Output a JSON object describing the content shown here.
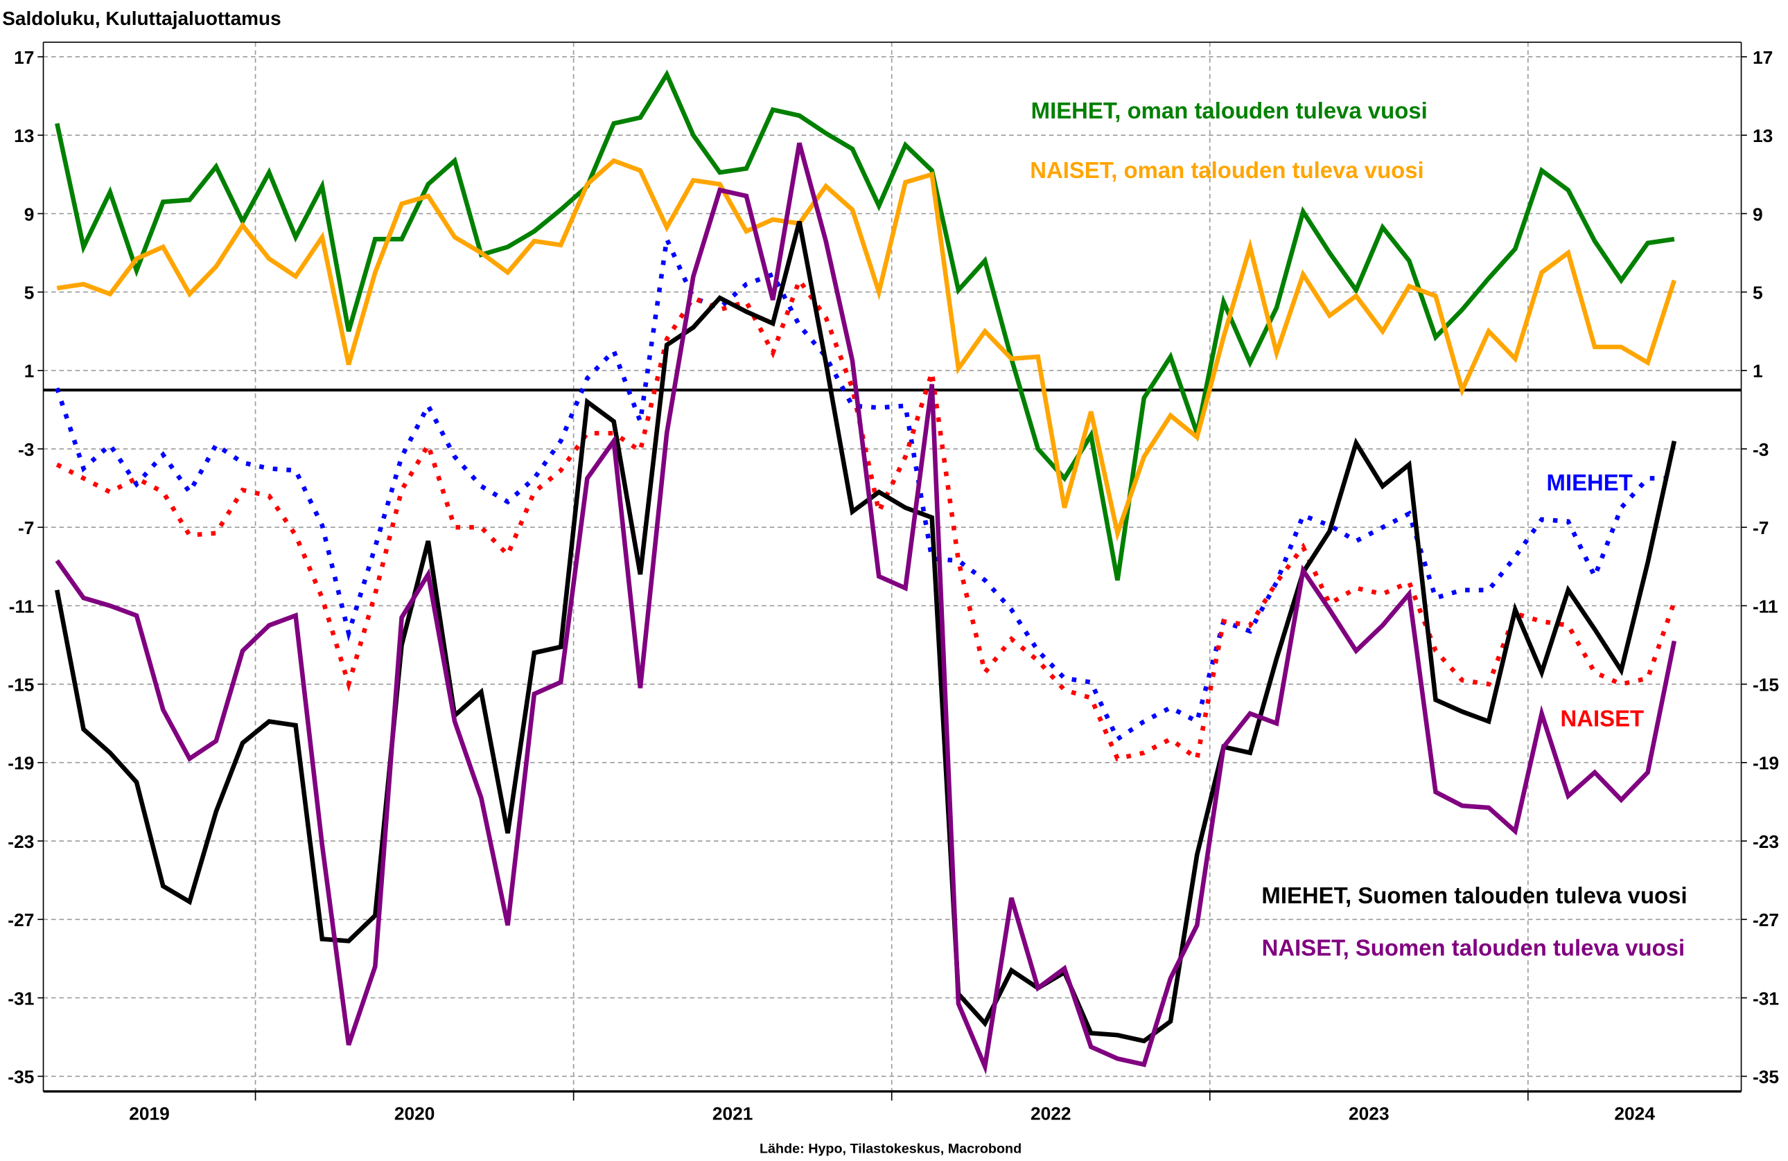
{
  "chart_data": {
    "type": "line",
    "title": "Saldoluku, Kuluttajaluottamus",
    "source": "Lähde: Hypo, Tilastokeskus, Macrobond",
    "xlabel": "",
    "ylabel": "Saldoluku",
    "ylim": [
      -36.5,
      17.8
    ],
    "yticks": [
      17,
      13,
      9,
      5,
      1,
      -3,
      -7,
      -11,
      -15,
      -19,
      -23,
      -27,
      -31,
      -35
    ],
    "x_start": "2019-05",
    "x_frequency": "monthly",
    "x_end": "2024-06",
    "xtick_labels": [
      "2019",
      "2020",
      "2021",
      "2022",
      "2023",
      "2024"
    ],
    "grid": true,
    "zero_line": true,
    "series": [
      {
        "name": "MIEHET, oman talouden tuleva vuosi",
        "label": "MIEHET, oman talouden tuleva vuosi",
        "color": "#008000",
        "style": "solid",
        "values": [
          13.6,
          7.3,
          10.1,
          6.1,
          9.6,
          9.7,
          11.4,
          8.6,
          11.1,
          7.8,
          10.4,
          3.0,
          7.7,
          7.7,
          10.5,
          11.7,
          6.9,
          7.3,
          8.1,
          9.2,
          10.4,
          13.6,
          13.9,
          16.1,
          13.0,
          11.1,
          11.3,
          14.3,
          14.0,
          13.1,
          12.3,
          9.4,
          12.5,
          11.2,
          5.1,
          6.6,
          1.6,
          -3.0,
          -4.5,
          -2.3,
          -9.7,
          -0.4,
          1.7,
          -2.2,
          4.5,
          1.4,
          4.2,
          9.1,
          7.0,
          5.1,
          8.3,
          6.6,
          2.7,
          4.1,
          5.7,
          7.2,
          11.2,
          10.2,
          7.6,
          5.6,
          7.5,
          7.7
        ]
      },
      {
        "name": "NAISET, oman talouden tuleva vuosi",
        "label": "NAISET, oman talouden tuleva vuosi",
        "color": "#FFA500",
        "style": "solid",
        "values": [
          5.2,
          5.4,
          4.9,
          6.7,
          7.3,
          4.9,
          6.3,
          8.4,
          6.7,
          5.8,
          7.8,
          1.3,
          6.0,
          9.5,
          9.9,
          7.8,
          7.0,
          6.0,
          7.6,
          7.4,
          10.5,
          11.7,
          11.2,
          8.3,
          10.7,
          10.5,
          8.1,
          8.7,
          8.5,
          10.4,
          9.2,
          5.0,
          10.6,
          11.0,
          1.1,
          3.0,
          1.6,
          1.7,
          -6.0,
          -1.1,
          -7.3,
          -3.4,
          -1.3,
          -2.4,
          2.7,
          7.3,
          1.9,
          5.9,
          3.8,
          4.8,
          3.0,
          5.3,
          4.8,
          0.0,
          3.0,
          1.6,
          6.0,
          7.0,
          2.2,
          2.2,
          1.4,
          5.6
        ]
      },
      {
        "name": "MIEHET",
        "label": "MIEHET",
        "color": "#0000FF",
        "style": "dotted",
        "values": [
          0.1,
          -4.0,
          -2.8,
          -4.8,
          -3.3,
          -5.2,
          -2.8,
          -3.7,
          -4.0,
          -4.1,
          -6.9,
          -12.4,
          -8.0,
          -3.4,
          -0.8,
          -3.4,
          -4.9,
          -5.7,
          -4.5,
          -2.6,
          0.6,
          2.0,
          -1.6,
          7.7,
          4.7,
          4.2,
          5.4,
          5.9,
          3.3,
          1.7,
          -0.8,
          -0.9,
          -0.8,
          -8.6,
          -8.7,
          -9.7,
          -11.2,
          -13.3,
          -14.7,
          -14.9,
          -17.8,
          -16.9,
          -16.2,
          -16.9,
          -11.8,
          -12.3,
          -9.8,
          -6.4,
          -6.9,
          -7.7,
          -7.0,
          -6.3,
          -10.6,
          -10.2,
          -10.2,
          -8.5,
          -6.6,
          -6.7,
          -9.5,
          -6.0,
          -4.5,
          -4.5
        ]
      },
      {
        "name": "NAISET",
        "label": "NAISET",
        "color": "#FF0000",
        "style": "dotted",
        "values": [
          -3.8,
          -4.5,
          -5.2,
          -4.5,
          -5.2,
          -7.4,
          -7.3,
          -5.1,
          -5.4,
          -7.4,
          -10.6,
          -15.0,
          -10.4,
          -5.1,
          -2.8,
          -7.0,
          -7.0,
          -8.4,
          -5.2,
          -4.1,
          -2.2,
          -2.2,
          -3.1,
          2.6,
          4.7,
          4.1,
          4.5,
          1.9,
          5.6,
          3.7,
          0.1,
          -6.2,
          -3.4,
          0.9,
          -8.7,
          -14.4,
          -12.7,
          -13.8,
          -15.3,
          -15.7,
          -18.8,
          -18.5,
          -17.8,
          -18.8,
          -11.8,
          -12.0,
          -9.8,
          -8.0,
          -10.9,
          -10.1,
          -10.4,
          -9.8,
          -13.3,
          -14.8,
          -15.0,
          -11.4,
          -11.8,
          -12.0,
          -14.4,
          -15.0,
          -14.7,
          -10.8
        ]
      },
      {
        "name": "MIEHET, Suomen talouden tuleva vuosi",
        "label": "MIEHET, Suomen talouden tuleva vuosi",
        "color": "#000000",
        "style": "solid",
        "values": [
          -10.2,
          -17.3,
          -18.5,
          -20.0,
          -25.3,
          -26.1,
          -21.5,
          -18.0,
          -16.9,
          -17.1,
          -28.0,
          -28.1,
          -26.8,
          -13.0,
          -7.7,
          -16.6,
          -15.4,
          -22.6,
          -13.4,
          -13.1,
          -0.6,
          -1.6,
          -9.4,
          2.3,
          3.2,
          4.7,
          4.0,
          3.4,
          8.6,
          1.4,
          -6.2,
          -5.2,
          -6.0,
          -6.5,
          -30.8,
          -32.3,
          -29.6,
          -30.5,
          -29.7,
          -32.8,
          -32.9,
          -33.2,
          -32.2,
          -23.7,
          -18.2,
          -18.5,
          -13.7,
          -9.3,
          -7.2,
          -2.7,
          -4.9,
          -3.8,
          -15.8,
          -16.4,
          -16.9,
          -11.2,
          -14.4,
          -10.2,
          -12.2,
          -14.3,
          -8.8,
          -2.6
        ]
      },
      {
        "name": "NAISET, Suomen talouden tuleva vuosi",
        "label": "NAISET, Suomen talouden tuleva vuosi",
        "color": "#800080",
        "style": "solid",
        "values": [
          -8.7,
          -10.6,
          -11.0,
          -11.5,
          -16.3,
          -18.8,
          -17.9,
          -13.3,
          -12.0,
          -11.5,
          -23.2,
          -33.4,
          -29.4,
          -11.6,
          -9.4,
          -16.9,
          -20.8,
          -27.3,
          -15.5,
          -14.9,
          -4.5,
          -2.6,
          -15.2,
          -2.2,
          5.8,
          10.2,
          9.9,
          4.6,
          12.6,
          7.6,
          1.5,
          -9.5,
          -10.1,
          0.3,
          -31.3,
          -34.5,
          -25.9,
          -30.5,
          -29.5,
          -33.5,
          -34.1,
          -34.4,
          -30.0,
          -27.3,
          -18.2,
          -16.5,
          -17.0,
          -9.2,
          -11.2,
          -13.3,
          -12.0,
          -10.4,
          -20.5,
          -21.2,
          -21.3,
          -22.5,
          -16.5,
          -20.7,
          -19.5,
          -20.9,
          -19.5,
          -12.8
        ]
      }
    ]
  }
}
